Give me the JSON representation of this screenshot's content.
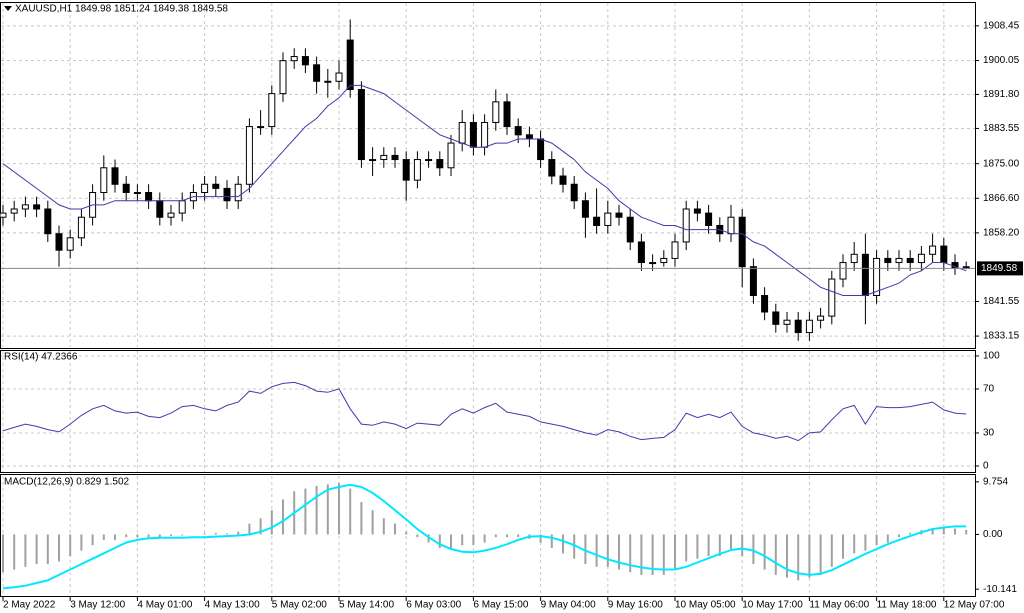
{
  "chart_data": [
    {
      "type": "candlestick",
      "title": "XAUUSD,H1  1849.98 1851.24 1849.38 1849.58",
      "categories": [
        "2 May 2022",
        null,
        null,
        null,
        null,
        null,
        "3 May 12:00",
        null,
        null,
        null,
        null,
        null,
        "4 May 01:00",
        null,
        null,
        null,
        null,
        null,
        "4 May 13:00",
        null,
        null,
        null,
        null,
        null,
        "5 May 02:00",
        null,
        null,
        null,
        null,
        null,
        "5 May 14:00",
        null,
        null,
        null,
        null,
        null,
        "6 May 03:00",
        null,
        null,
        null,
        null,
        null,
        "6 May 15:00",
        null,
        null,
        null,
        null,
        null,
        "9 May 04:00",
        null,
        null,
        null,
        null,
        null,
        "9 May 16:00",
        null,
        null,
        null,
        null,
        null,
        "10 May 05:00",
        null,
        null,
        null,
        null,
        null,
        "10 May 17:00",
        null,
        null,
        null,
        null,
        null,
        "11 May 06:00",
        null,
        null,
        null,
        null,
        null,
        "11 May 18:00",
        null,
        null,
        null,
        null,
        null,
        "12 May 07:00",
        null,
        null
      ],
      "open": [
        1862,
        1863,
        1864,
        1865,
        1864,
        1858,
        1854,
        1857,
        1862,
        1868,
        1874,
        1870,
        1868,
        1868,
        1866,
        1862,
        1863,
        1866,
        1868,
        1870,
        1869,
        1866,
        1870,
        1884,
        1884,
        1892,
        1900,
        1901,
        1899,
        1895,
        1895,
        1905,
        1893,
        1876,
        1876,
        1877,
        1876,
        1871,
        1876,
        1876,
        1874,
        1880,
        1885,
        1879,
        1885,
        1890,
        1884,
        1882,
        1881,
        1876,
        1872,
        1870,
        1866,
        1862,
        1860,
        1863,
        1862,
        1856,
        1851,
        1851,
        1852,
        1856,
        1864,
        1863,
        1860,
        1858,
        1862,
        1850,
        1843,
        1839,
        1836,
        1837,
        1834,
        1837,
        1838,
        1847,
        1851,
        1853,
        1843,
        1852,
        1851,
        1852,
        1851,
        1853,
        1855,
        1851,
        1849.98
      ],
      "high": [
        1865,
        1866,
        1867,
        1867,
        1866,
        1860,
        1859,
        1864,
        1870,
        1877,
        1876,
        1872,
        1870,
        1870,
        1868,
        1865,
        1868,
        1870,
        1872,
        1872,
        1871,
        1872,
        1886,
        1888,
        1894,
        1902,
        1903,
        1903,
        1901,
        1898,
        1900,
        1910,
        1895,
        1879,
        1879,
        1879,
        1878,
        1878,
        1878,
        1878,
        1882,
        1888,
        1887,
        1887,
        1893,
        1892,
        1886,
        1884,
        1883,
        1878,
        1874,
        1872,
        1868,
        1869,
        1866,
        1865,
        1864,
        1858,
        1853,
        1854,
        1858,
        1866,
        1866,
        1865,
        1862,
        1865,
        1864,
        1852,
        1845,
        1841,
        1839,
        1839,
        1839,
        1840,
        1849,
        1853,
        1856,
        1858,
        1854,
        1854,
        1854,
        1854,
        1855,
        1858,
        1857,
        1853,
        1851.24
      ],
      "low": [
        1860,
        1861,
        1862,
        1862,
        1856,
        1850,
        1852,
        1855,
        1860,
        1866,
        1868,
        1866,
        1866,
        1864,
        1860,
        1860,
        1861,
        1864,
        1866,
        1867,
        1864,
        1864,
        1868,
        1882,
        1882,
        1890,
        1898,
        1897,
        1892,
        1891,
        1893,
        1891,
        1874,
        1872,
        1874,
        1874,
        1866,
        1869,
        1874,
        1872,
        1872,
        1878,
        1877,
        1877,
        1883,
        1882,
        1880,
        1879,
        1874,
        1870,
        1868,
        1864,
        1857,
        1858,
        1858,
        1860,
        1854,
        1849,
        1849,
        1850,
        1850,
        1854,
        1861,
        1858,
        1856,
        1856,
        1845,
        1841,
        1837,
        1834,
        1834,
        1832,
        1832,
        1835,
        1836,
        1845,
        1849,
        1836,
        1841,
        1849,
        1849,
        1849,
        1849,
        1851,
        1849,
        1848,
        1849.38
      ],
      "close": [
        1863,
        1864,
        1865,
        1864,
        1858,
        1854,
        1857,
        1862,
        1868,
        1874,
        1870,
        1868,
        1868,
        1866,
        1862,
        1863,
        1866,
        1868,
        1870,
        1869,
        1866,
        1870,
        1884,
        1884,
        1892,
        1900,
        1901,
        1899,
        1895,
        1895,
        1897,
        1893,
        1876,
        1876,
        1877,
        1876,
        1871,
        1876,
        1876,
        1874,
        1880,
        1885,
        1879,
        1885,
        1890,
        1884,
        1882,
        1881,
        1876,
        1872,
        1870,
        1866,
        1862,
        1860,
        1863,
        1862,
        1856,
        1851,
        1851,
        1852,
        1856,
        1864,
        1863,
        1860,
        1858,
        1862,
        1850,
        1843,
        1839,
        1836,
        1837,
        1834,
        1837,
        1838,
        1847,
        1851,
        1853,
        1843,
        1852,
        1851,
        1852,
        1851,
        1853,
        1855,
        1851,
        1849.6,
        1849.58
      ],
      "up_color": "#ffffff",
      "down_color": "#000000",
      "ma": {
        "color": "#3c3caa",
        "values": [
          1875,
          1873,
          1871,
          1869,
          1867,
          1865,
          1864,
          1864,
          1865,
          1865,
          1866,
          1866,
          1866,
          1866,
          1866,
          1866,
          1866,
          1867,
          1867,
          1867,
          1867,
          1867,
          1869,
          1872,
          1875,
          1878,
          1881,
          1884,
          1886,
          1889,
          1891,
          1894,
          1894,
          1893,
          1892,
          1890,
          1888,
          1886,
          1884,
          1882,
          1881,
          1880,
          1879,
          1879,
          1880,
          1880,
          1881,
          1881,
          1881,
          1880,
          1878,
          1876,
          1873,
          1871,
          1869,
          1866,
          1864,
          1862,
          1861,
          1860,
          1860,
          1859,
          1859,
          1859,
          1859,
          1858,
          1858,
          1856,
          1855,
          1853,
          1851,
          1849,
          1847,
          1845,
          1844,
          1843,
          1843,
          1843,
          1844,
          1845,
          1846,
          1848,
          1849,
          1851,
          1851,
          1850,
          1849
        ]
      },
      "current_price": 1849.58,
      "ylim": [
        1830.5,
        1914.0
      ],
      "yticks": [
        1833.15,
        1841.55,
        {
          "value": 1858.2,
          "label": "1858.20"
        },
        {
          "value": 1866.6,
          "label": "1866.60"
        },
        {
          "value": 1875,
          "label": "1875.00"
        },
        1883.55,
        {
          "value": 1891.8,
          "label": "1891.80"
        },
        1900.05,
        1908.45
      ],
      "grid": true
    },
    {
      "type": "line",
      "title": "RSI(14) 47.2366",
      "series": [
        {
          "color": "#3c3caa",
          "values": [
            32,
            35,
            38,
            36,
            33,
            31,
            38,
            46,
            52,
            55,
            50,
            48,
            49,
            45,
            44,
            48,
            54,
            55,
            52,
            50,
            55,
            58,
            68,
            66,
            72,
            75,
            76,
            73,
            68,
            67,
            70,
            52,
            38,
            37,
            40,
            38,
            34,
            39,
            38,
            37,
            47,
            52,
            48,
            53,
            57,
            49,
            47,
            45,
            40,
            38,
            36,
            33,
            30,
            28,
            33,
            31,
            27,
            24,
            25,
            26,
            33,
            48,
            44,
            47,
            44,
            49,
            36,
            30,
            28,
            25,
            27,
            23,
            30,
            31,
            42,
            52,
            55,
            38,
            54,
            53,
            53,
            54,
            56,
            58,
            51,
            48,
            47.2366
          ]
        }
      ],
      "ylim": [
        -5.5,
        104.5
      ],
      "yticks": [
        0,
        30,
        70,
        100
      ],
      "grid": true
    },
    {
      "type": "macd",
      "title": "MACD(12,26,9) 0.829 1.502",
      "histogram": {
        "color": "#a0a0a0",
        "values": [
          -7,
          -6.5,
          -6,
          -5.5,
          -5.5,
          -5,
          -4,
          -3,
          -2,
          -1,
          -1,
          -0.5,
          -0.5,
          -0.5,
          -0.5,
          -0.3,
          -0.2,
          0,
          0.2,
          0.3,
          0.2,
          0.5,
          2,
          3,
          4.5,
          6.5,
          8,
          8.5,
          9,
          9.3,
          9.5,
          8.5,
          6,
          4.5,
          3,
          2,
          0.5,
          -0.5,
          -1.5,
          -2.5,
          -2.5,
          -2,
          -2,
          -1.5,
          -0.5,
          -0.5,
          -0.5,
          -0.8,
          -1.5,
          -2.5,
          -3.5,
          -4.5,
          -5.5,
          -6,
          -6,
          -6.5,
          -7,
          -7.5,
          -7.5,
          -7.5,
          -6.5,
          -5,
          -4.5,
          -4,
          -4,
          -3,
          -4,
          -5.5,
          -6.5,
          -7.5,
          -8,
          -8.5,
          -8,
          -7.5,
          -6,
          -4.5,
          -3.5,
          -3,
          -2,
          -1.5,
          -0.5,
          0.3,
          0.8,
          1.2,
          1.4,
          1.1,
          0.829
        ]
      },
      "signal": {
        "color": "#00e8ff",
        "values": [
          -10,
          -9.8,
          -9.5,
          -9,
          -8.5,
          -7.5,
          -6.5,
          -5.5,
          -4.5,
          -3.5,
          -2.5,
          -1.5,
          -1,
          -0.7,
          -0.6,
          -0.6,
          -0.6,
          -0.5,
          -0.5,
          -0.4,
          -0.3,
          -0.2,
          0,
          0.5,
          1.3,
          2.5,
          4,
          5.5,
          7,
          8.3,
          8.8,
          9.2,
          8.8,
          7.7,
          6.2,
          4.5,
          2.8,
          1,
          -0.5,
          -1.8,
          -2.7,
          -3.2,
          -3.3,
          -3,
          -2.5,
          -1.8,
          -1,
          -0.4,
          -0.3,
          -0.6,
          -1.2,
          -2,
          -3,
          -3.8,
          -4.6,
          -5.2,
          -5.7,
          -6.1,
          -6.4,
          -6.5,
          -6.5,
          -6,
          -5.2,
          -4.4,
          -3.6,
          -2.9,
          -2.6,
          -3,
          -4,
          -5.3,
          -6.5,
          -7.2,
          -7.5,
          -7.3,
          -6.6,
          -5.6,
          -4.6,
          -3.6,
          -2.7,
          -1.8,
          -1,
          -0.3,
          0.4,
          1,
          1.3,
          1.5,
          1.502
        ]
      },
      "ylim": [
        -11.41,
        10.84
      ],
      "yticks": [
        -10.141,
        {
          "value": 0,
          "label": "0.00"
        },
        9.754
      ],
      "grid": false
    }
  ]
}
